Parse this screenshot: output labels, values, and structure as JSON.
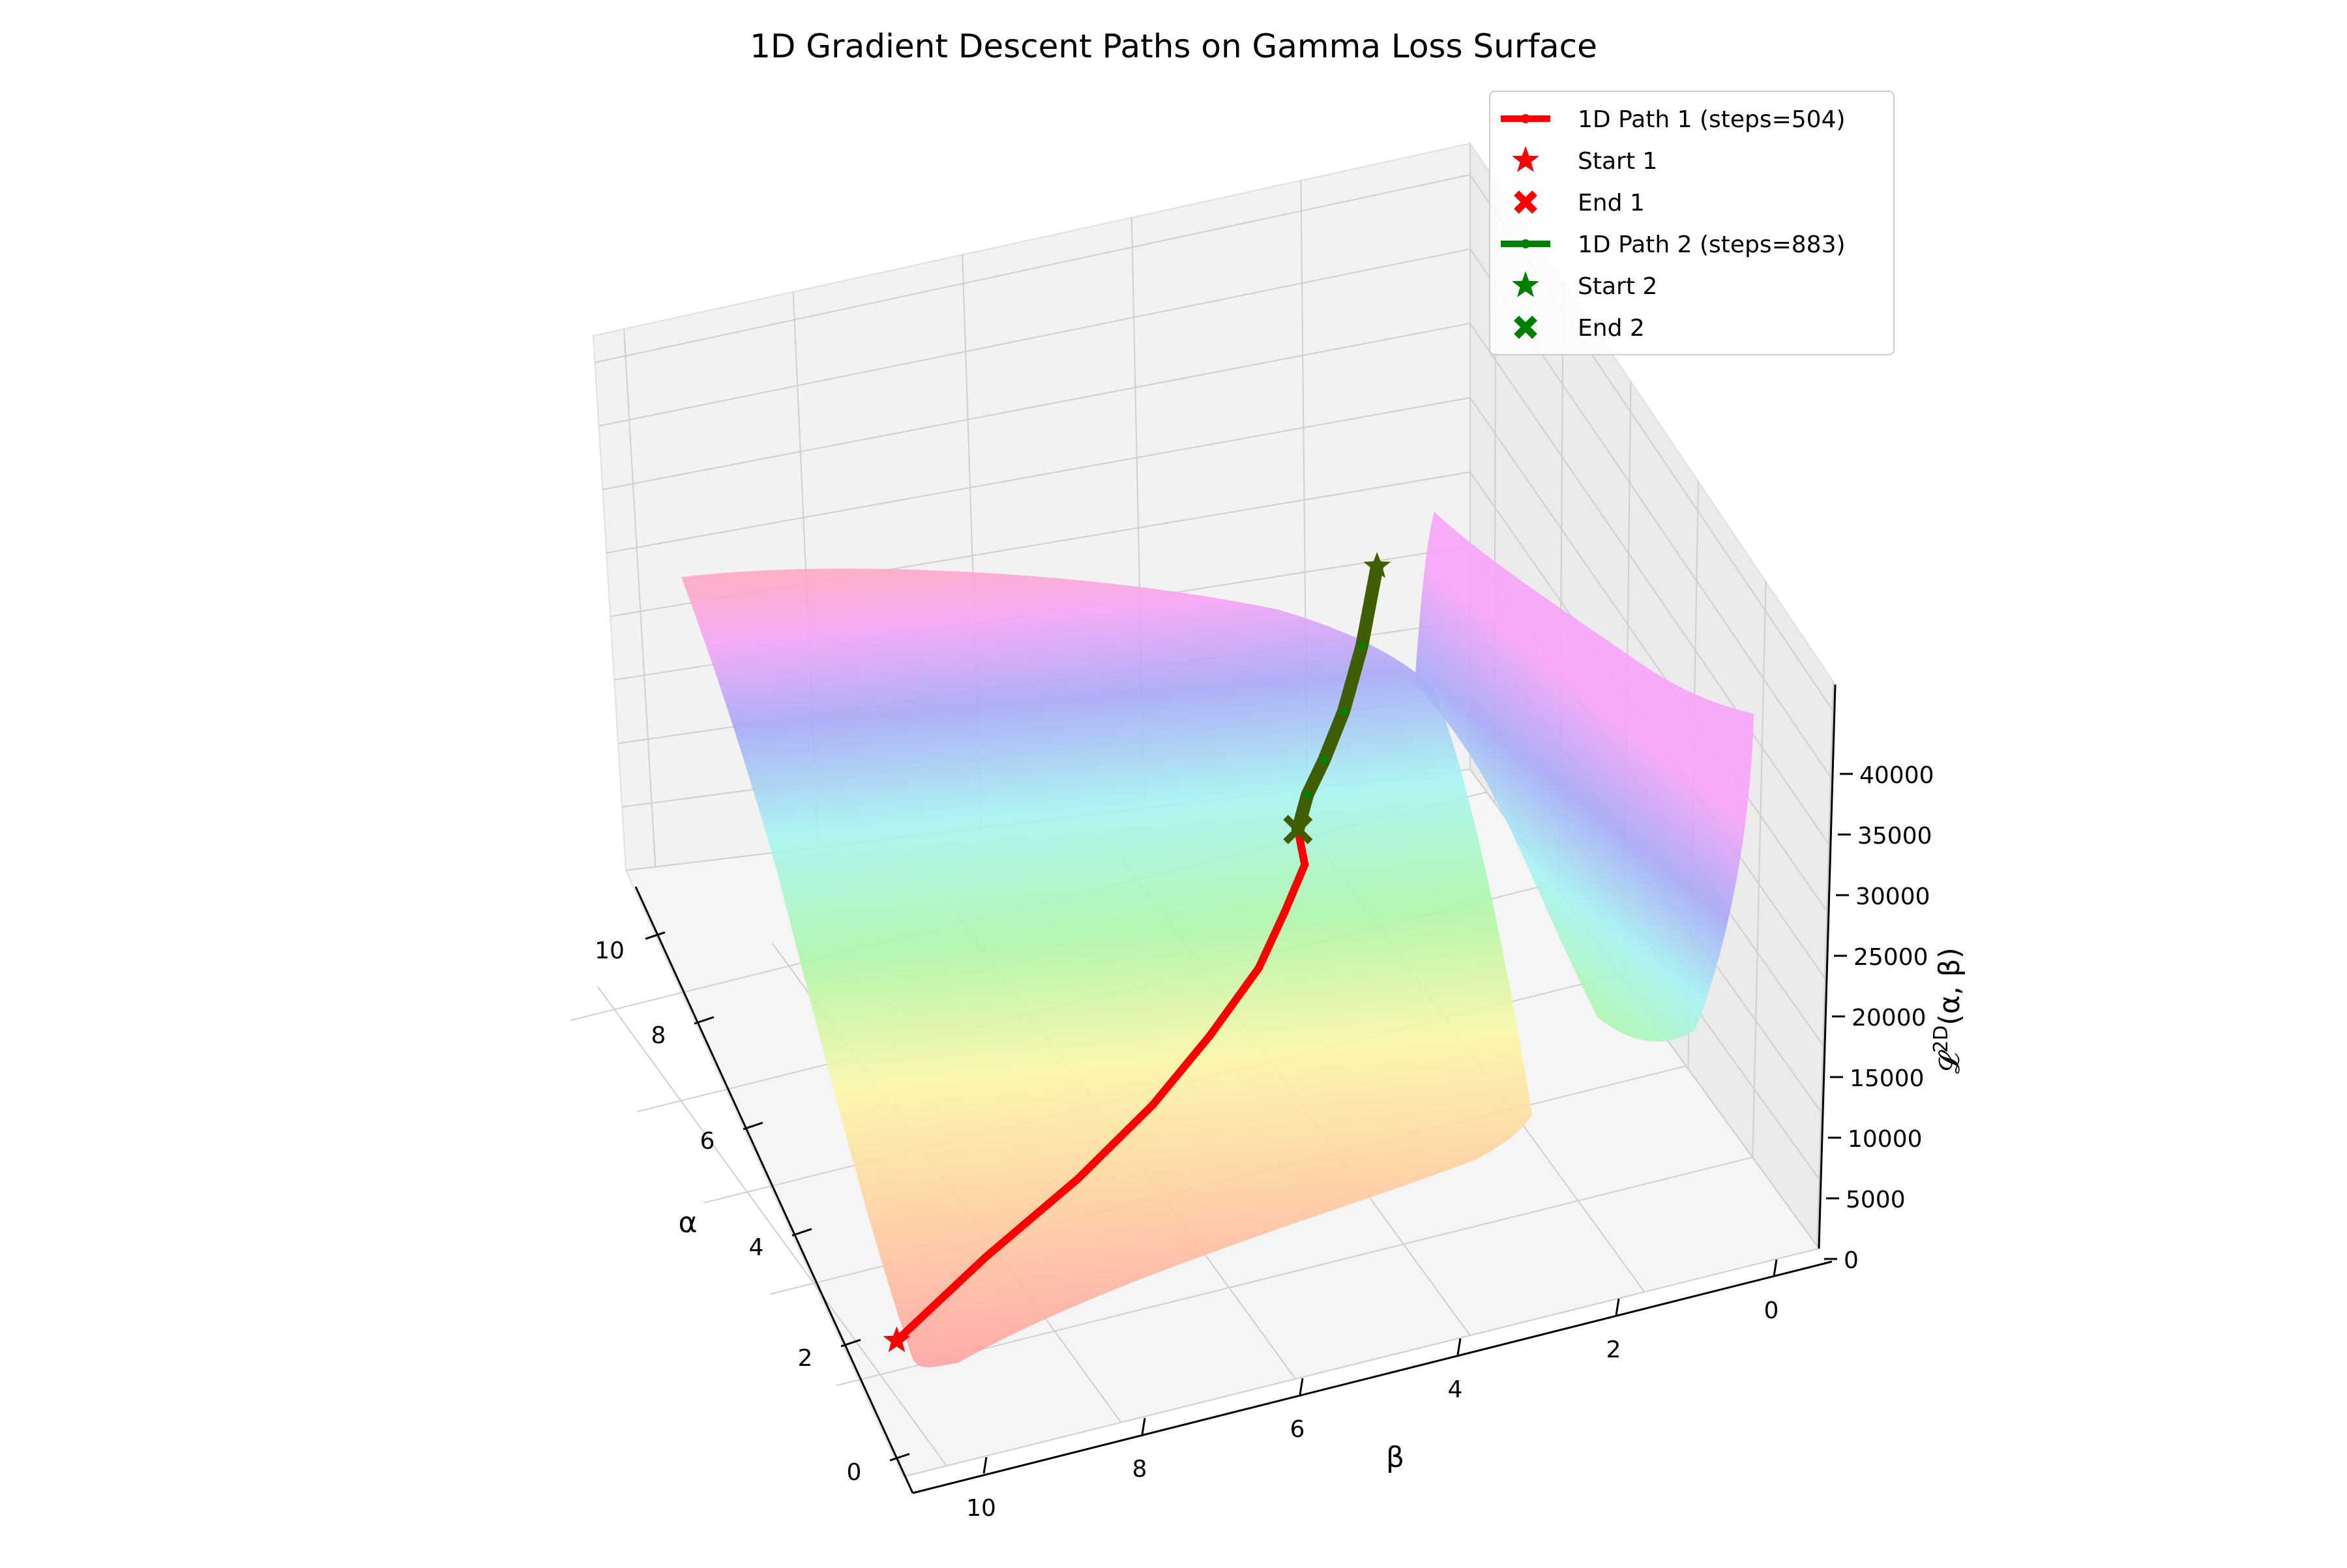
{
  "chart_data": {
    "type": "surface3d",
    "title": "1D Gradient Descent Paths on Gamma Loss Surface",
    "xlabel": "β",
    "ylabel": "α",
    "zlabel": "𝓛^{2D}(α, β)",
    "xlim": [
      0,
      10.5
    ],
    "ylim": [
      0,
      10.5
    ],
    "zlim": [
      0,
      42000
    ],
    "x_ticks": [
      "0",
      "2",
      "4",
      "6",
      "8",
      "10"
    ],
    "y_ticks": [
      "0",
      "2",
      "4",
      "6",
      "8",
      "10"
    ],
    "z_ticks": [
      "0",
      "5000",
      "10000",
      "15000",
      "20000",
      "25000",
      "30000",
      "35000",
      "40000"
    ],
    "grid": true,
    "legend_position": "top-right",
    "colormap": "gist_rainbow (reversed, translucent)",
    "series": [
      {
        "name": "1D Path 1 (steps=504)",
        "color": "#ff0000",
        "kind": "line",
        "points": [
          {
            "beta": 10.0,
            "alpha": 1.5,
            "loss": 0
          },
          {
            "beta": 8.6,
            "alpha": 2.5,
            "loss": 0
          },
          {
            "beta": 7.2,
            "alpha": 3.4,
            "loss": 0
          },
          {
            "beta": 6.0,
            "alpha": 4.3,
            "loss": 0
          },
          {
            "beta": 5.0,
            "alpha": 5.2,
            "loss": 0
          },
          {
            "beta": 4.1,
            "alpha": 6.1,
            "loss": 0
          },
          {
            "beta": 3.5,
            "alpha": 6.9,
            "loss": 0
          },
          {
            "beta": 3.0,
            "alpha": 7.6,
            "loss": 0
          },
          {
            "beta": 2.85,
            "alpha": 8.2,
            "loss": 0
          }
        ]
      },
      {
        "name": "Start 1",
        "color": "#ff0000",
        "kind": "marker",
        "marker": "star",
        "point": {
          "beta": 10.0,
          "alpha": 1.5,
          "loss": 0
        }
      },
      {
        "name": "End 1",
        "color": "#ff0000",
        "kind": "marker",
        "marker": "x",
        "point": {
          "beta": 2.85,
          "alpha": 8.2,
          "loss": 0
        }
      },
      {
        "name": "1D Path 2 (steps=883)",
        "color": "#008000",
        "kind": "line",
        "points": [
          {
            "beta": 1.05,
            "alpha": 10.2,
            "loss": 8000
          },
          {
            "beta": 1.4,
            "alpha": 9.9,
            "loss": 4200
          },
          {
            "beta": 1.8,
            "alpha": 9.5,
            "loss": 1800
          },
          {
            "beta": 2.2,
            "alpha": 9.1,
            "loss": 500
          },
          {
            "beta": 2.55,
            "alpha": 8.7,
            "loss": 100
          },
          {
            "beta": 2.85,
            "alpha": 8.2,
            "loss": 0
          }
        ]
      },
      {
        "name": "Start 2",
        "color": "#008000",
        "kind": "marker",
        "marker": "star",
        "point": {
          "beta": 1.05,
          "alpha": 10.2,
          "loss": 8000
        }
      },
      {
        "name": "End 2",
        "color": "#008000",
        "kind": "marker",
        "marker": "x",
        "point": {
          "beta": 2.85,
          "alpha": 8.2,
          "loss": 0
        }
      }
    ]
  }
}
